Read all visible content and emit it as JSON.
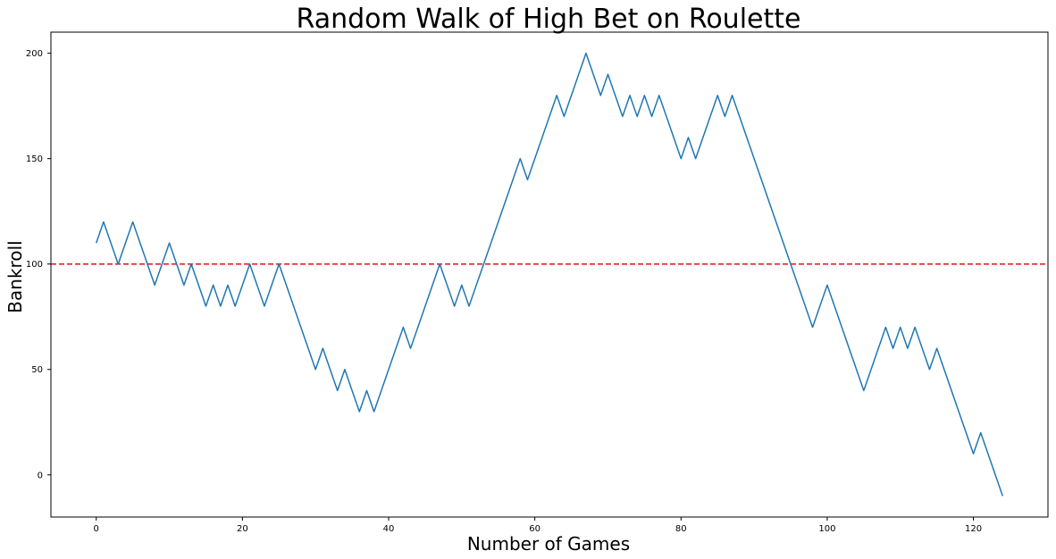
{
  "chart_data": {
    "type": "line",
    "title": "Random Walk of High Bet on Roulette",
    "xlabel": "Number of Games",
    "ylabel": "Bankroll",
    "xlim": [
      -6.2,
      130.2
    ],
    "ylim": [
      -20,
      210
    ],
    "xticks": [
      0,
      20,
      40,
      60,
      80,
      100,
      120
    ],
    "yticks": [
      0,
      50,
      100,
      150,
      200
    ],
    "grid": false,
    "series": [
      {
        "color": "#1f77b4",
        "values": [
          110,
          120,
          110,
          100,
          110,
          120,
          110,
          100,
          90,
          100,
          110,
          100,
          90,
          100,
          90,
          80,
          90,
          80,
          90,
          80,
          90,
          100,
          90,
          80,
          90,
          100,
          90,
          80,
          70,
          60,
          50,
          60,
          50,
          40,
          50,
          40,
          30,
          40,
          30,
          40,
          50,
          60,
          70,
          60,
          70,
          80,
          90,
          100,
          90,
          80,
          90,
          80,
          90,
          100,
          110,
          120,
          130,
          140,
          150,
          140,
          150,
          160,
          170,
          180,
          170,
          180,
          190,
          200,
          190,
          180,
          190,
          180,
          170,
          180,
          170,
          180,
          170,
          180,
          170,
          160,
          150,
          160,
          150,
          160,
          170,
          180,
          170,
          180,
          170,
          160,
          150,
          140,
          130,
          120,
          110,
          100,
          90,
          80,
          70,
          80,
          90,
          80,
          70,
          60,
          50,
          40,
          50,
          60,
          70,
          60,
          70,
          60,
          70,
          60,
          50,
          60,
          50,
          40,
          30,
          20,
          10,
          20,
          10,
          0,
          -10
        ]
      }
    ],
    "reference_line": {
      "y": 100,
      "color": "#e41a1c",
      "style": "dashed"
    }
  }
}
